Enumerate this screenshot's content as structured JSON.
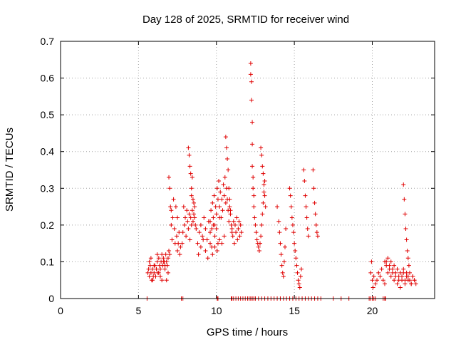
{
  "chart_data": {
    "type": "scatter",
    "title": "Day 128 of 2025, SRMTID for receiver wind",
    "xlabel": "GPS time / hours",
    "ylabel": "SRMTID / TECUs",
    "xlim": [
      0,
      24
    ],
    "ylim": [
      0,
      0.7
    ],
    "xticks": [
      "0",
      "5",
      "10",
      "15",
      "20"
    ],
    "yticks": [
      "0",
      "0.1",
      "0.2",
      "0.3",
      "0.4",
      "0.5",
      "0.6",
      "0.7"
    ],
    "grid": true,
    "marker": "plus",
    "color": "#e00000",
    "series": [
      {
        "name": "SRMTID",
        "x": [
          5.6,
          5.65,
          5.7,
          5.75,
          5.8,
          5.85,
          5.9,
          5.95,
          6.0,
          6.05,
          6.1,
          6.15,
          6.2,
          6.25,
          6.3,
          6.35,
          6.4,
          6.45,
          6.5,
          6.55,
          6.6,
          6.65,
          6.7,
          6.75,
          6.8,
          6.85,
          6.9,
          6.95,
          7.0,
          5.7,
          5.8,
          5.9,
          6.0,
          6.1,
          6.2,
          6.3,
          6.4,
          6.5,
          6.6,
          6.7,
          6.8,
          6.9,
          6.95,
          7.0,
          7.05,
          7.1,
          7.1,
          7.15,
          7.2,
          7.25,
          7.3,
          7.35,
          7.4,
          7.45,
          7.5,
          7.5,
          7.55,
          7.6,
          7.65,
          7.7,
          7.8,
          7.85,
          7.9,
          7.95,
          8.0,
          8.05,
          8.1,
          8.15,
          8.2,
          8.25,
          8.3,
          8.35,
          8.4,
          8.45,
          8.5,
          8.55,
          8.6,
          8.65,
          8.7,
          8.2,
          8.25,
          8.3,
          8.35,
          8.4,
          8.4,
          8.45,
          8.5,
          8.55,
          8.6,
          8.8,
          8.9,
          9.0,
          9.1,
          9.2,
          9.3,
          9.4,
          9.5,
          9.6,
          9.7,
          9.8,
          9.9,
          10.0,
          10.1,
          10.2,
          8.85,
          9.0,
          9.15,
          9.3,
          9.45,
          9.6,
          9.75,
          9.9,
          10.05,
          10.2,
          10.35,
          10.5,
          9.6,
          9.65,
          9.7,
          9.75,
          9.8,
          9.85,
          9.9,
          9.95,
          10.0,
          10.05,
          10.1,
          10.15,
          10.2,
          10.25,
          10.3,
          10.35,
          10.4,
          10.45,
          10.5,
          10.55,
          10.6,
          10.65,
          10.7,
          10.75,
          10.8,
          10.85,
          10.9,
          10.95,
          11.0,
          10.6,
          10.65,
          10.7,
          10.75,
          10.8,
          10.85,
          10.9,
          11.0,
          11.05,
          11.1,
          11.15,
          11.2,
          11.25,
          11.3,
          11.35,
          11.4,
          11.45,
          11.5,
          11.55,
          11.6,
          12.2,
          12.2,
          12.25,
          12.25,
          12.3,
          12.3,
          12.3,
          12.35,
          12.35,
          12.4,
          12.4,
          12.45,
          12.5,
          12.55,
          12.6,
          12.65,
          12.7,
          12.75,
          12.8,
          12.85,
          12.9,
          12.95,
          13.0,
          13.05,
          13.1,
          12.85,
          12.9,
          12.95,
          13.0,
          13.05,
          13.1,
          13.15,
          13.9,
          14.0,
          14.05,
          14.1,
          14.15,
          14.2,
          14.25,
          14.3,
          14.35,
          14.4,
          14.45,
          14.7,
          14.75,
          14.8,
          14.85,
          14.9,
          14.95,
          15.0,
          15.05,
          15.1,
          15.15,
          15.2,
          15.25,
          15.3,
          15.35,
          15.4,
          15.45,
          15.6,
          15.65,
          15.7,
          15.75,
          15.8,
          15.85,
          15.9,
          16.2,
          16.25,
          16.3,
          16.35,
          16.4,
          16.45,
          16.5,
          19.9,
          19.95,
          20.0,
          20.05,
          20.1,
          20.2,
          20.3,
          20.4,
          20.5,
          20.6,
          20.7,
          20.8,
          20.9,
          21.0,
          21.1,
          21.2,
          21.3,
          21.4,
          21.5,
          21.6,
          21.7,
          21.8,
          21.9,
          22.0,
          22.1,
          22.2,
          22.3,
          22.4,
          22.5,
          22.6,
          22.7,
          22.8,
          20.8,
          20.9,
          21.0,
          21.1,
          21.2,
          21.3,
          21.4,
          21.5,
          21.6,
          21.7,
          21.8,
          21.9,
          22.0,
          22.1,
          22.2,
          22.3,
          22.4,
          22.5,
          22.6,
          22.7,
          22.0,
          22.05,
          22.1,
          22.15,
          22.2,
          22.25,
          22.3,
          22.35,
          5.55,
          7.75,
          7.85,
          10.05,
          10.1,
          10.95,
          11.0,
          11.1,
          11.25,
          11.4,
          11.55,
          11.7,
          11.85,
          12.0,
          12.1,
          12.2,
          12.3,
          12.4,
          12.5,
          12.7,
          12.9,
          13.1,
          13.3,
          13.5,
          13.7,
          13.9,
          14.1,
          14.3,
          14.5,
          14.7,
          14.9,
          15.1,
          15.3,
          15.5,
          15.7,
          15.9,
          16.1,
          16.3,
          16.5,
          16.7,
          17.5,
          18.0,
          18.5,
          19.8,
          19.9,
          20.0,
          20.1,
          20.2,
          20.7,
          20.8,
          20.85
        ],
        "y": [
          0.07,
          0.08,
          0.06,
          0.09,
          0.07,
          0.05,
          0.08,
          0.06,
          0.07,
          0.09,
          0.06,
          0.08,
          0.1,
          0.07,
          0.11,
          0.09,
          0.08,
          0.1,
          0.12,
          0.09,
          0.11,
          0.1,
          0.08,
          0.12,
          0.1,
          0.09,
          0.11,
          0.13,
          0.12,
          0.1,
          0.11,
          0.05,
          0.09,
          0.06,
          0.12,
          0.07,
          0.06,
          0.05,
          0.1,
          0.09,
          0.05,
          0.07,
          0.33,
          0.3,
          0.25,
          0.2,
          0.24,
          0.16,
          0.22,
          0.27,
          0.19,
          0.15,
          0.25,
          0.17,
          0.13,
          0.22,
          0.15,
          0.18,
          0.12,
          0.14,
          0.15,
          0.18,
          0.25,
          0.2,
          0.22,
          0.17,
          0.24,
          0.21,
          0.19,
          0.23,
          0.16,
          0.22,
          0.2,
          0.24,
          0.21,
          0.23,
          0.22,
          0.2,
          0.19,
          0.41,
          0.39,
          0.36,
          0.34,
          0.3,
          0.28,
          0.33,
          0.27,
          0.26,
          0.25,
          0.15,
          0.18,
          0.2,
          0.17,
          0.22,
          0.19,
          0.16,
          0.21,
          0.18,
          0.14,
          0.2,
          0.17,
          0.19,
          0.15,
          0.22,
          0.12,
          0.14,
          0.16,
          0.13,
          0.11,
          0.15,
          0.12,
          0.14,
          0.13,
          0.16,
          0.15,
          0.17,
          0.21,
          0.24,
          0.19,
          0.26,
          0.22,
          0.28,
          0.2,
          0.25,
          0.23,
          0.3,
          0.27,
          0.32,
          0.25,
          0.29,
          0.22,
          0.27,
          0.24,
          0.31,
          0.28,
          0.33,
          0.26,
          0.3,
          0.27,
          0.24,
          0.21,
          0.25,
          0.23,
          0.2,
          0.18,
          0.44,
          0.41,
          0.38,
          0.35,
          0.3,
          0.27,
          0.24,
          0.19,
          0.17,
          0.21,
          0.15,
          0.2,
          0.18,
          0.22,
          0.16,
          0.19,
          0.21,
          0.17,
          0.2,
          0.18,
          0.64,
          0.61,
          0.59,
          0.54,
          0.48,
          0.42,
          0.36,
          0.33,
          0.3,
          0.28,
          0.25,
          0.22,
          0.2,
          0.18,
          0.16,
          0.15,
          0.14,
          0.13,
          0.15,
          0.17,
          0.2,
          0.23,
          0.26,
          0.29,
          0.32,
          0.41,
          0.39,
          0.36,
          0.34,
          0.31,
          0.28,
          0.25,
          0.25,
          0.21,
          0.18,
          0.15,
          0.12,
          0.09,
          0.07,
          0.06,
          0.1,
          0.14,
          0.19,
          0.3,
          0.28,
          0.25,
          0.22,
          0.2,
          0.18,
          0.15,
          0.13,
          0.11,
          0.09,
          0.07,
          0.05,
          0.04,
          0.03,
          0.06,
          0.08,
          0.35,
          0.32,
          0.28,
          0.25,
          0.22,
          0.19,
          0.17,
          0.35,
          0.3,
          0.26,
          0.23,
          0.2,
          0.18,
          0.17,
          0.07,
          0.1,
          0.05,
          0.03,
          0.06,
          0.04,
          0.05,
          0.07,
          0.06,
          0.08,
          0.05,
          0.04,
          0.1,
          0.07,
          0.09,
          0.06,
          0.08,
          0.05,
          0.07,
          0.04,
          0.06,
          0.03,
          0.05,
          0.07,
          0.04,
          0.06,
          0.05,
          0.07,
          0.04,
          0.06,
          0.05,
          0.04,
          0.1,
          0.09,
          0.11,
          0.08,
          0.1,
          0.07,
          0.09,
          0.06,
          0.08,
          0.05,
          0.07,
          0.06,
          0.08,
          0.05,
          0.07,
          0.06,
          0.05,
          0.04,
          0.06,
          0.05,
          0.31,
          0.27,
          0.23,
          0.19,
          0.16,
          0.13,
          0.11,
          0.09,
          0,
          0,
          0,
          0,
          0,
          0,
          0,
          0,
          0,
          0,
          0,
          0,
          0,
          0,
          0,
          0,
          0,
          0,
          0,
          0,
          0,
          0,
          0,
          0,
          0,
          0,
          0,
          0,
          0,
          0,
          0,
          0,
          0,
          0,
          0,
          0,
          0,
          0,
          0,
          0,
          0,
          0,
          0,
          0,
          0,
          0,
          0,
          0,
          0,
          0,
          0
        ]
      }
    ]
  }
}
